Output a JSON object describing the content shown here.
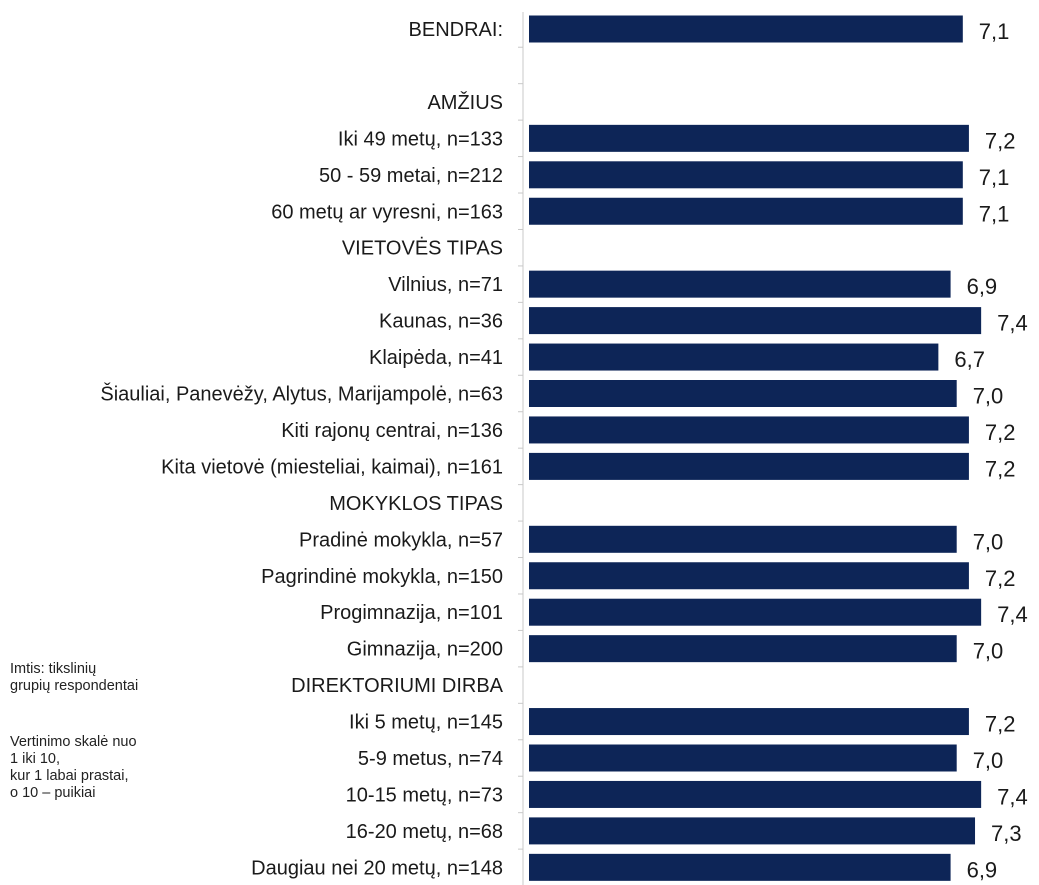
{
  "chart_data": {
    "type": "bar",
    "orientation": "horizontal",
    "bar_color": "#0d2557",
    "value_decimal_separator": ",",
    "xlim": [
      0,
      10
    ],
    "grid": false,
    "legend": "none",
    "rows": [
      {
        "label": "BENDRAI:",
        "value": 7.1,
        "display": "7,1"
      },
      {
        "label": "",
        "value": null,
        "display": ""
      },
      {
        "label": "AMŽIUS",
        "value": null,
        "display": ""
      },
      {
        "label": "Iki 49 metų, n=133",
        "value": 7.2,
        "display": "7,2"
      },
      {
        "label": "50 - 59 metai, n=212",
        "value": 7.1,
        "display": "7,1"
      },
      {
        "label": "60 metų ar vyresni, n=163",
        "value": 7.1,
        "display": "7,1"
      },
      {
        "label": "VIETOVĖS TIPAS",
        "value": null,
        "display": ""
      },
      {
        "label": "Vilnius, n=71",
        "value": 6.9,
        "display": "6,9"
      },
      {
        "label": "Kaunas, n=36",
        "value": 7.4,
        "display": "7,4"
      },
      {
        "label": "Klaipėda, n=41",
        "value": 6.7,
        "display": "6,7"
      },
      {
        "label": "Šiauliai, Panevėžy, Alytus, Marijampolė, n=63",
        "value": 7.0,
        "display": "7,0"
      },
      {
        "label": "Kiti rajonų centrai, n=136",
        "value": 7.2,
        "display": "7,2"
      },
      {
        "label": "Kita vietovė (miesteliai, kaimai), n=161",
        "value": 7.2,
        "display": "7,2"
      },
      {
        "label": "MOKYKLOS TIPAS",
        "value": null,
        "display": ""
      },
      {
        "label": "Pradinė mokykla, n=57",
        "value": 7.0,
        "display": "7,0"
      },
      {
        "label": "Pagrindinė mokykla, n=150",
        "value": 7.2,
        "display": "7,2"
      },
      {
        "label": "Progimnazija, n=101",
        "value": 7.4,
        "display": "7,4"
      },
      {
        "label": "Gimnazija, n=200",
        "value": 7.0,
        "display": "7,0"
      },
      {
        "label": "DIREKTORIUMI DIRBA",
        "value": null,
        "display": ""
      },
      {
        "label": "Iki 5 metų, n=145",
        "value": 7.2,
        "display": "7,2"
      },
      {
        "label": "5-9 metus, n=74",
        "value": 7.0,
        "display": "7,0"
      },
      {
        "label": "10-15 metų, n=73",
        "value": 7.4,
        "display": "7,4"
      },
      {
        "label": "16-20 metų, n=68",
        "value": 7.3,
        "display": "7,3"
      },
      {
        "label": "Daugiau nei 20 metų, n=148",
        "value": 6.9,
        "display": "6,9"
      }
    ]
  },
  "notes": {
    "sample": "Imtis: tikslinių\ngrupių respondentai",
    "scale": "Vertinimo skalė nuo\n1 iki 10,\nkur 1 labai prastai,\no 10 – puikiai"
  }
}
